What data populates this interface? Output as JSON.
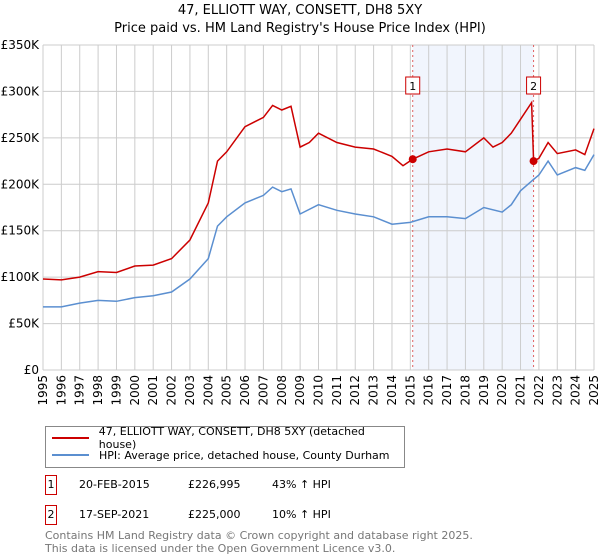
{
  "chart_data": {
    "type": "line",
    "title": "47, ELLIOTT WAY, CONSETT, DH8 5XY",
    "subtitle": "Price paid vs. HM Land Registry's House Price Index (HPI)",
    "xlabel": "",
    "ylabel": "",
    "xlim": [
      1995,
      2025
    ],
    "ylim": [
      0,
      350000
    ],
    "x_ticks": [
      "1995",
      "1996",
      "1997",
      "1998",
      "1999",
      "2000",
      "2001",
      "2002",
      "2003",
      "2004",
      "2005",
      "2006",
      "2007",
      "2008",
      "2009",
      "2010",
      "2011",
      "2012",
      "2013",
      "2014",
      "2015",
      "2016",
      "2017",
      "2018",
      "2019",
      "2020",
      "2021",
      "2022",
      "2023",
      "2024",
      "2025"
    ],
    "y_ticks": [
      {
        "v": 0,
        "label": "£0"
      },
      {
        "v": 50000,
        "label": "£50K"
      },
      {
        "v": 100000,
        "label": "£100K"
      },
      {
        "v": 150000,
        "label": "£150K"
      },
      {
        "v": 200000,
        "label": "£200K"
      },
      {
        "v": 250000,
        "label": "£250K"
      },
      {
        "v": 300000,
        "label": "£300K"
      },
      {
        "v": 350000,
        "label": "£350K"
      }
    ],
    "grid": true,
    "shaded_range": [
      2015.13,
      2021.71
    ],
    "series": [
      {
        "name": "47, ELLIOTT WAY, CONSETT, DH8 5XY (detached house)",
        "color": "#cc0000",
        "x": [
          1995,
          1996,
          1997,
          1998,
          1999,
          2000,
          2001,
          2002,
          2003,
          2004,
          2004.5,
          2005,
          2006,
          2007,
          2007.5,
          2008,
          2008.5,
          2009,
          2009.5,
          2010,
          2011,
          2012,
          2013,
          2014,
          2014.6,
          2015.13,
          2016,
          2017,
          2018,
          2019,
          2019.5,
          2020,
          2020.5,
          2021,
          2021.6,
          2021.71,
          2022,
          2022.5,
          2023,
          2024,
          2024.5,
          2025
        ],
        "values": [
          98000,
          97000,
          100000,
          106000,
          105000,
          112000,
          113000,
          120000,
          140000,
          180000,
          225000,
          235000,
          262000,
          272000,
          285000,
          280000,
          284000,
          240000,
          245000,
          255000,
          245000,
          240000,
          238000,
          230000,
          220000,
          226995,
          235000,
          238000,
          235000,
          250000,
          240000,
          245000,
          255000,
          270000,
          288000,
          225000,
          228000,
          245000,
          233000,
          237000,
          232000,
          260000
        ]
      },
      {
        "name": "HPI: Average price, detached house, County Durham",
        "color": "#5b8fd0",
        "x": [
          1995,
          1996,
          1997,
          1998,
          1999,
          2000,
          2001,
          2002,
          2003,
          2004,
          2004.5,
          2005,
          2006,
          2007,
          2007.5,
          2008,
          2008.5,
          2009,
          2010,
          2011,
          2012,
          2013,
          2014,
          2015,
          2016,
          2017,
          2018,
          2019,
          2020,
          2020.5,
          2021,
          2021.7,
          2022,
          2022.5,
          2023,
          2024,
          2024.5,
          2025
        ],
        "values": [
          68000,
          68000,
          72000,
          75000,
          74000,
          78000,
          80000,
          84000,
          98000,
          120000,
          155000,
          165000,
          180000,
          188000,
          197000,
          192000,
          195000,
          168000,
          178000,
          172000,
          168000,
          165000,
          157000,
          159000,
          165000,
          165000,
          163000,
          175000,
          170000,
          178000,
          193000,
          205000,
          210000,
          225000,
          210000,
          218000,
          215000,
          232000
        ]
      }
    ],
    "sales": [
      {
        "id": "1",
        "x": 2015.13,
        "value": 226995,
        "date": "20-FEB-2015",
        "price": "£226,995",
        "hpi": "43% ↑ HPI"
      },
      {
        "id": "2",
        "x": 2021.71,
        "value": 225000,
        "date": "17-SEP-2021",
        "price": "£225,000",
        "hpi": "10% ↑ HPI"
      }
    ],
    "legend": "bottom"
  },
  "footer": {
    "line1": "Contains HM Land Registry data © Crown copyright and database right 2025.",
    "line2": "This data is licensed under the Open Government Licence v3.0."
  }
}
